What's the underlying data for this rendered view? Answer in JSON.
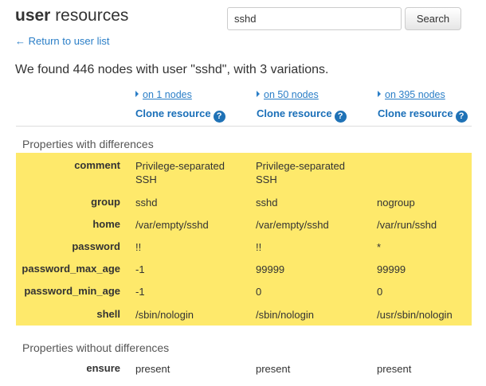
{
  "header": {
    "title_bold": "user",
    "title_rest": " resources",
    "search_value": "sshd",
    "search_button": "Search",
    "back_link": "← Return to user list"
  },
  "summary": "We found 446 nodes with user \"sshd\", with 3 variations.",
  "variations": [
    {
      "nodes": "on 1 nodes",
      "clone": "Clone resource"
    },
    {
      "nodes": "on 50 nodes",
      "clone": "Clone resource"
    },
    {
      "nodes": "on 395 nodes",
      "clone": "Clone resource"
    }
  ],
  "help_glyph": "?",
  "with_diff": {
    "heading": "Properties with differences",
    "highlight_color": "#fee96b",
    "rows": [
      {
        "label": "comment",
        "values": [
          "Privilege-separated SSH",
          "Privilege-separated SSH",
          ""
        ]
      },
      {
        "label": "group",
        "values": [
          "sshd",
          "sshd",
          "nogroup"
        ]
      },
      {
        "label": "home",
        "values": [
          "/var/empty/sshd",
          "/var/empty/sshd",
          "/var/run/sshd"
        ]
      },
      {
        "label": "password",
        "values": [
          "!!",
          "!!",
          "*"
        ]
      },
      {
        "label": "password_max_age",
        "values": [
          "-1",
          "99999",
          "99999"
        ]
      },
      {
        "label": "password_min_age",
        "values": [
          "-1",
          "0",
          "0"
        ]
      },
      {
        "label": "shell",
        "values": [
          "/sbin/nologin",
          "/sbin/nologin",
          "/usr/sbin/nologin"
        ]
      }
    ]
  },
  "without_diff": {
    "heading": "Properties without differences",
    "rows": [
      {
        "label": "ensure",
        "values": [
          "present",
          "present",
          "present"
        ]
      }
    ]
  }
}
